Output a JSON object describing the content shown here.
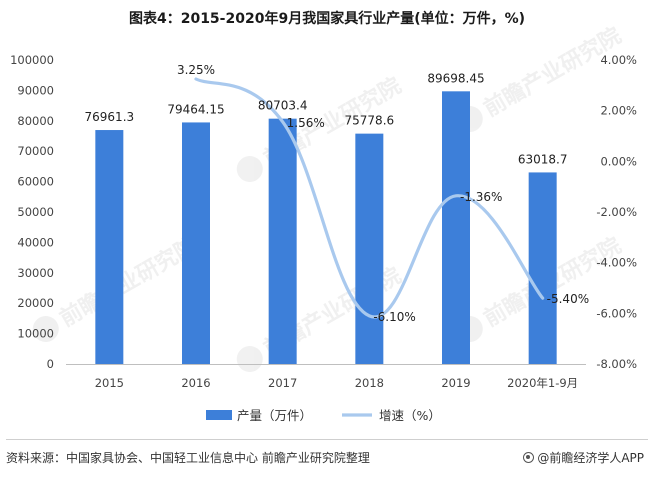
{
  "chart_data": {
    "type": "bar",
    "title": "图表4：2015-2020年9月我国家具行业产量(单位：万件，%)",
    "categories": [
      "2015",
      "2016",
      "2017",
      "2018",
      "2019",
      "2020年1-9月"
    ],
    "series": [
      {
        "name": "产量（万件）",
        "type": "bar",
        "axis": "left",
        "values": [
          76961.3,
          79464.15,
          80703.4,
          75778.6,
          89698.45,
          63018.7
        ],
        "labels": [
          "76961.3",
          "79464.15",
          "80703.4",
          "75778.6",
          "89698.45",
          "63018.7"
        ],
        "color": "#3d7fd9"
      },
      {
        "name": "增速（%）",
        "type": "line",
        "smooth": true,
        "axis": "right",
        "values": [
          null,
          3.25,
          1.56,
          -6.1,
          -1.36,
          -5.4
        ],
        "labels": [
          "",
          "3.25%",
          "1.56%",
          "-6.10%",
          "-1.36%",
          "-5.40%"
        ],
        "color": "#a9c9ee"
      }
    ],
    "y_left": {
      "min": 0,
      "max": 100000,
      "step": 10000,
      "ticks": [
        "0",
        "10000",
        "20000",
        "30000",
        "40000",
        "50000",
        "60000",
        "70000",
        "80000",
        "90000",
        "100000"
      ]
    },
    "y_right": {
      "min": -8,
      "max": 4,
      "step": 2,
      "ticks": [
        "-8.00%",
        "-6.00%",
        "-4.00%",
        "-2.00%",
        "0.00%",
        "2.00%",
        "4.00%"
      ]
    },
    "grid": false,
    "legend": "bottom"
  },
  "footer": {
    "source": "资料来源：中国家具协会、中国轻工业信息中心 前瞻产业研究院整理",
    "brand": "@前瞻经济学人APP"
  },
  "watermark": {
    "text": "前瞻产业研究院"
  }
}
